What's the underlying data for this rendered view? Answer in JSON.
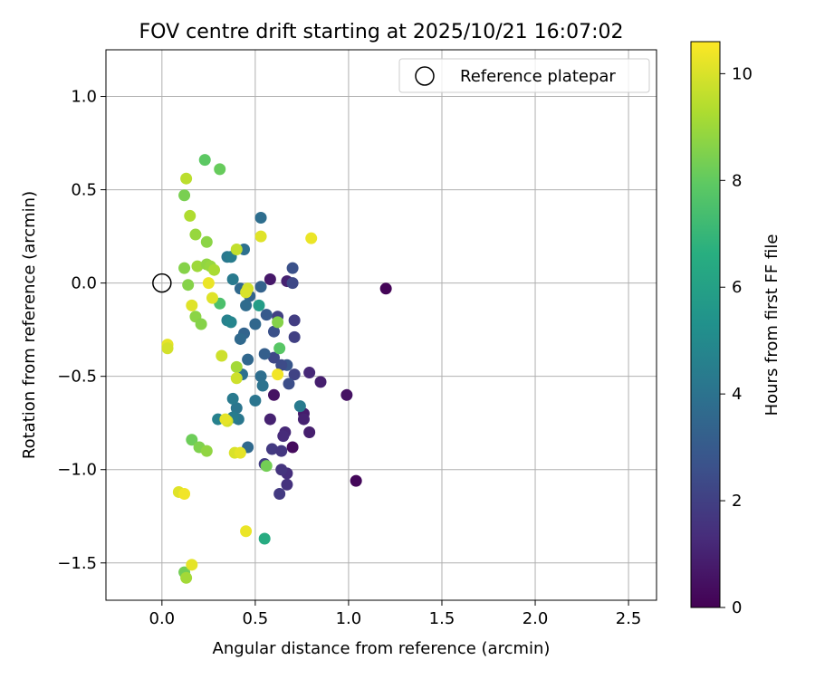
{
  "chart_data": {
    "type": "scatter",
    "title": "FOV centre drift starting at 2025/10/21 16:07:02",
    "xlabel": "Angular distance from reference (arcmin)",
    "ylabel": "Rotation from reference (arcmin)",
    "xlim": [
      -0.3,
      2.65
    ],
    "ylim": [
      -1.7,
      1.25
    ],
    "xticks": [
      0.0,
      0.5,
      1.0,
      1.5,
      2.0,
      2.5
    ],
    "xtick_labels": [
      "0.0",
      "0.5",
      "1.0",
      "1.5",
      "2.0",
      "2.5"
    ],
    "yticks": [
      1.0,
      0.5,
      0.0,
      -0.5,
      -1.0,
      -1.5
    ],
    "ytick_labels": [
      "1.0",
      "0.5",
      "0.0",
      "−0.5",
      "−1.0",
      "−1.5"
    ],
    "grid": true,
    "legend": {
      "location": "top-right",
      "label": "Reference platepar"
    },
    "reference_point": {
      "x": 0.0,
      "y": 0.0
    },
    "colorbar": {
      "label": "Hours from first FF file",
      "colormap": "viridis",
      "min": 0,
      "max": 10.6,
      "ticks": [
        0,
        2,
        4,
        6,
        8,
        10
      ],
      "tick_labels": [
        "0",
        "2",
        "4",
        "6",
        "8",
        "10"
      ]
    },
    "points": [
      {
        "x": 1.2,
        "y": -0.03,
        "h": 0.1
      },
      {
        "x": 1.04,
        "y": -1.06,
        "h": 0.2
      },
      {
        "x": 0.99,
        "y": -0.6,
        "h": 0.5
      },
      {
        "x": 0.85,
        "y": -0.53,
        "h": 0.9
      },
      {
        "x": 0.79,
        "y": -0.48,
        "h": 1.2
      },
      {
        "x": 0.79,
        "y": -0.8,
        "h": 0.9
      },
      {
        "x": 0.76,
        "y": -0.7,
        "h": 0.8
      },
      {
        "x": 0.76,
        "y": -0.73,
        "h": 1.0
      },
      {
        "x": 0.7,
        "y": -0.88,
        "h": 0.3
      },
      {
        "x": 0.67,
        "y": 0.01,
        "h": 1.0
      },
      {
        "x": 0.58,
        "y": 0.02,
        "h": 0.7
      },
      {
        "x": 0.58,
        "y": -0.73,
        "h": 1.0
      },
      {
        "x": 0.6,
        "y": -0.6,
        "h": 0.5
      },
      {
        "x": 0.66,
        "y": -0.8,
        "h": 1.2
      },
      {
        "x": 0.65,
        "y": -0.82,
        "h": 1.3
      },
      {
        "x": 0.67,
        "y": -1.02,
        "h": 1.4
      },
      {
        "x": 0.64,
        "y": -1.0,
        "h": 1.6
      },
      {
        "x": 0.67,
        "y": -1.08,
        "h": 1.5
      },
      {
        "x": 0.63,
        "y": -1.13,
        "h": 1.8
      },
      {
        "x": 0.59,
        "y": -0.89,
        "h": 1.8
      },
      {
        "x": 0.64,
        "y": -0.9,
        "h": 1.7
      },
      {
        "x": 0.55,
        "y": -0.97,
        "h": 1.9
      },
      {
        "x": 0.71,
        "y": -0.2,
        "h": 1.9
      },
      {
        "x": 0.71,
        "y": -0.29,
        "h": 2.0
      },
      {
        "x": 0.71,
        "y": -0.49,
        "h": 2.1
      },
      {
        "x": 0.7,
        "y": 0.0,
        "h": 2.3
      },
      {
        "x": 0.7,
        "y": 0.08,
        "h": 2.6
      },
      {
        "x": 0.62,
        "y": -0.18,
        "h": 2.0
      },
      {
        "x": 0.6,
        "y": -0.4,
        "h": 2.3
      },
      {
        "x": 0.68,
        "y": -0.54,
        "h": 2.5
      },
      {
        "x": 0.67,
        "y": -0.44,
        "h": 2.8
      },
      {
        "x": 0.64,
        "y": -0.44,
        "h": 2.4
      },
      {
        "x": 0.6,
        "y": -0.26,
        "h": 2.6
      },
      {
        "x": 0.56,
        "y": -0.17,
        "h": 3.0
      },
      {
        "x": 0.55,
        "y": -0.38,
        "h": 3.2
      },
      {
        "x": 0.53,
        "y": -0.02,
        "h": 3.3
      },
      {
        "x": 0.5,
        "y": -0.22,
        "h": 3.5
      },
      {
        "x": 0.47,
        "y": -0.07,
        "h": 3.4
      },
      {
        "x": 0.42,
        "y": -0.03,
        "h": 3.6
      },
      {
        "x": 0.45,
        "y": -0.12,
        "h": 3.7
      },
      {
        "x": 0.44,
        "y": -0.27,
        "h": 3.4
      },
      {
        "x": 0.42,
        "y": -0.3,
        "h": 3.6
      },
      {
        "x": 0.46,
        "y": -0.41,
        "h": 3.5
      },
      {
        "x": 0.53,
        "y": -0.5,
        "h": 3.8
      },
      {
        "x": 0.54,
        "y": -0.55,
        "h": 4.0
      },
      {
        "x": 0.5,
        "y": -0.63,
        "h": 4.1
      },
      {
        "x": 0.43,
        "y": -0.49,
        "h": 3.9
      },
      {
        "x": 0.4,
        "y": -0.67,
        "h": 4.1
      },
      {
        "x": 0.41,
        "y": -0.73,
        "h": 4.2
      },
      {
        "x": 0.38,
        "y": -0.62,
        "h": 4.3
      },
      {
        "x": 0.38,
        "y": -0.72,
        "h": 4.4
      },
      {
        "x": 0.3,
        "y": -0.73,
        "h": 4.6
      },
      {
        "x": 0.46,
        "y": -0.88,
        "h": 3.6
      },
      {
        "x": 0.44,
        "y": 0.18,
        "h": 3.9
      },
      {
        "x": 0.38,
        "y": 0.02,
        "h": 4.3
      },
      {
        "x": 0.35,
        "y": 0.14,
        "h": 4.2
      },
      {
        "x": 0.37,
        "y": 0.14,
        "h": 4.4
      },
      {
        "x": 0.35,
        "y": -0.2,
        "h": 4.6
      },
      {
        "x": 0.37,
        "y": -0.21,
        "h": 4.8
      },
      {
        "x": 0.53,
        "y": 0.35,
        "h": 3.8
      },
      {
        "x": 0.74,
        "y": -0.66,
        "h": 4.3
      },
      {
        "x": 0.52,
        "y": -0.12,
        "h": 5.8
      },
      {
        "x": 0.55,
        "y": -1.37,
        "h": 6.5
      },
      {
        "x": 0.31,
        "y": -0.11,
        "h": 7.5
      },
      {
        "x": 0.63,
        "y": -0.35,
        "h": 7.8
      },
      {
        "x": 0.62,
        "y": -0.21,
        "h": 8.6
      },
      {
        "x": 0.56,
        "y": -0.98,
        "h": 8.3
      },
      {
        "x": 0.23,
        "y": 0.66,
        "h": 7.9
      },
      {
        "x": 0.31,
        "y": 0.61,
        "h": 8.1
      },
      {
        "x": 0.12,
        "y": 0.47,
        "h": 8.4
      },
      {
        "x": 0.13,
        "y": 0.56,
        "h": 9.5
      },
      {
        "x": 0.15,
        "y": 0.36,
        "h": 9.3
      },
      {
        "x": 0.18,
        "y": 0.26,
        "h": 8.9
      },
      {
        "x": 0.24,
        "y": 0.22,
        "h": 8.7
      },
      {
        "x": 0.12,
        "y": 0.08,
        "h": 8.6
      },
      {
        "x": 0.19,
        "y": 0.09,
        "h": 9.0
      },
      {
        "x": 0.24,
        "y": 0.1,
        "h": 8.8
      },
      {
        "x": 0.26,
        "y": 0.09,
        "h": 8.9
      },
      {
        "x": 0.28,
        "y": 0.07,
        "h": 9.2
      },
      {
        "x": 0.14,
        "y": -0.01,
        "h": 8.6
      },
      {
        "x": 0.18,
        "y": -0.18,
        "h": 8.7
      },
      {
        "x": 0.21,
        "y": -0.22,
        "h": 8.6
      },
      {
        "x": 0.16,
        "y": -0.84,
        "h": 8.2
      },
      {
        "x": 0.2,
        "y": -0.88,
        "h": 8.5
      },
      {
        "x": 0.24,
        "y": -0.9,
        "h": 8.8
      },
      {
        "x": 0.4,
        "y": -0.45,
        "h": 9.1
      },
      {
        "x": 0.32,
        "y": -0.39,
        "h": 9.8
      },
      {
        "x": 0.12,
        "y": -1.55,
        "h": 8.3
      },
      {
        "x": 0.13,
        "y": -1.58,
        "h": 9.1
      },
      {
        "x": 0.16,
        "y": -1.51,
        "h": 10.2
      },
      {
        "x": 0.09,
        "y": -1.12,
        "h": 10.1
      },
      {
        "x": 0.12,
        "y": -1.13,
        "h": 10.4
      },
      {
        "x": 0.03,
        "y": -0.33,
        "h": 10.2
      },
      {
        "x": 0.03,
        "y": -0.35,
        "h": 9.9
      },
      {
        "x": 0.16,
        "y": -0.12,
        "h": 10.1
      },
      {
        "x": 0.25,
        "y": 0.0,
        "h": 10.3
      },
      {
        "x": 0.27,
        "y": -0.08,
        "h": 10.1
      },
      {
        "x": 0.35,
        "y": -0.74,
        "h": 9.9
      },
      {
        "x": 0.34,
        "y": -0.73,
        "h": 10.2
      },
      {
        "x": 0.4,
        "y": -0.51,
        "h": 9.8
      },
      {
        "x": 0.39,
        "y": -0.91,
        "h": 10.0
      },
      {
        "x": 0.42,
        "y": -0.91,
        "h": 10.2
      },
      {
        "x": 0.45,
        "y": -1.33,
        "h": 10.3
      },
      {
        "x": 0.4,
        "y": 0.18,
        "h": 9.6
      },
      {
        "x": 0.46,
        "y": -0.03,
        "h": 9.9
      },
      {
        "x": 0.45,
        "y": -0.05,
        "h": 10.0
      },
      {
        "x": 0.53,
        "y": 0.25,
        "h": 10.1
      },
      {
        "x": 0.62,
        "y": -0.49,
        "h": 10.4
      },
      {
        "x": 0.8,
        "y": 0.24,
        "h": 10.3
      }
    ]
  }
}
